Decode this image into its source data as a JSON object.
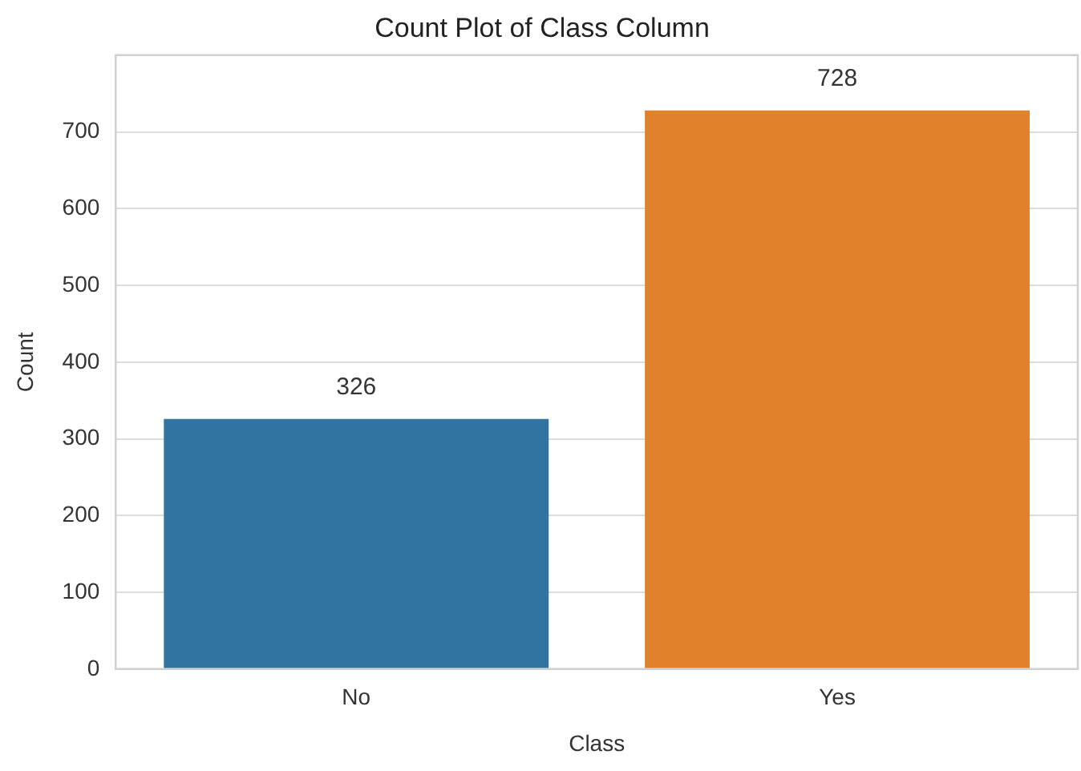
{
  "chart_data": {
    "type": "bar",
    "title": "Count Plot of Class Column",
    "xlabel": "Class",
    "ylabel": "Count",
    "categories": [
      "No",
      "Yes"
    ],
    "values": [
      326,
      728
    ],
    "colors": [
      "#3274a1",
      "#e1812c"
    ],
    "ylim": [
      0,
      800
    ],
    "yticks": [
      0,
      100,
      200,
      300,
      400,
      500,
      600,
      700
    ],
    "grid": "y",
    "data_labels": true,
    "legend": false
  }
}
